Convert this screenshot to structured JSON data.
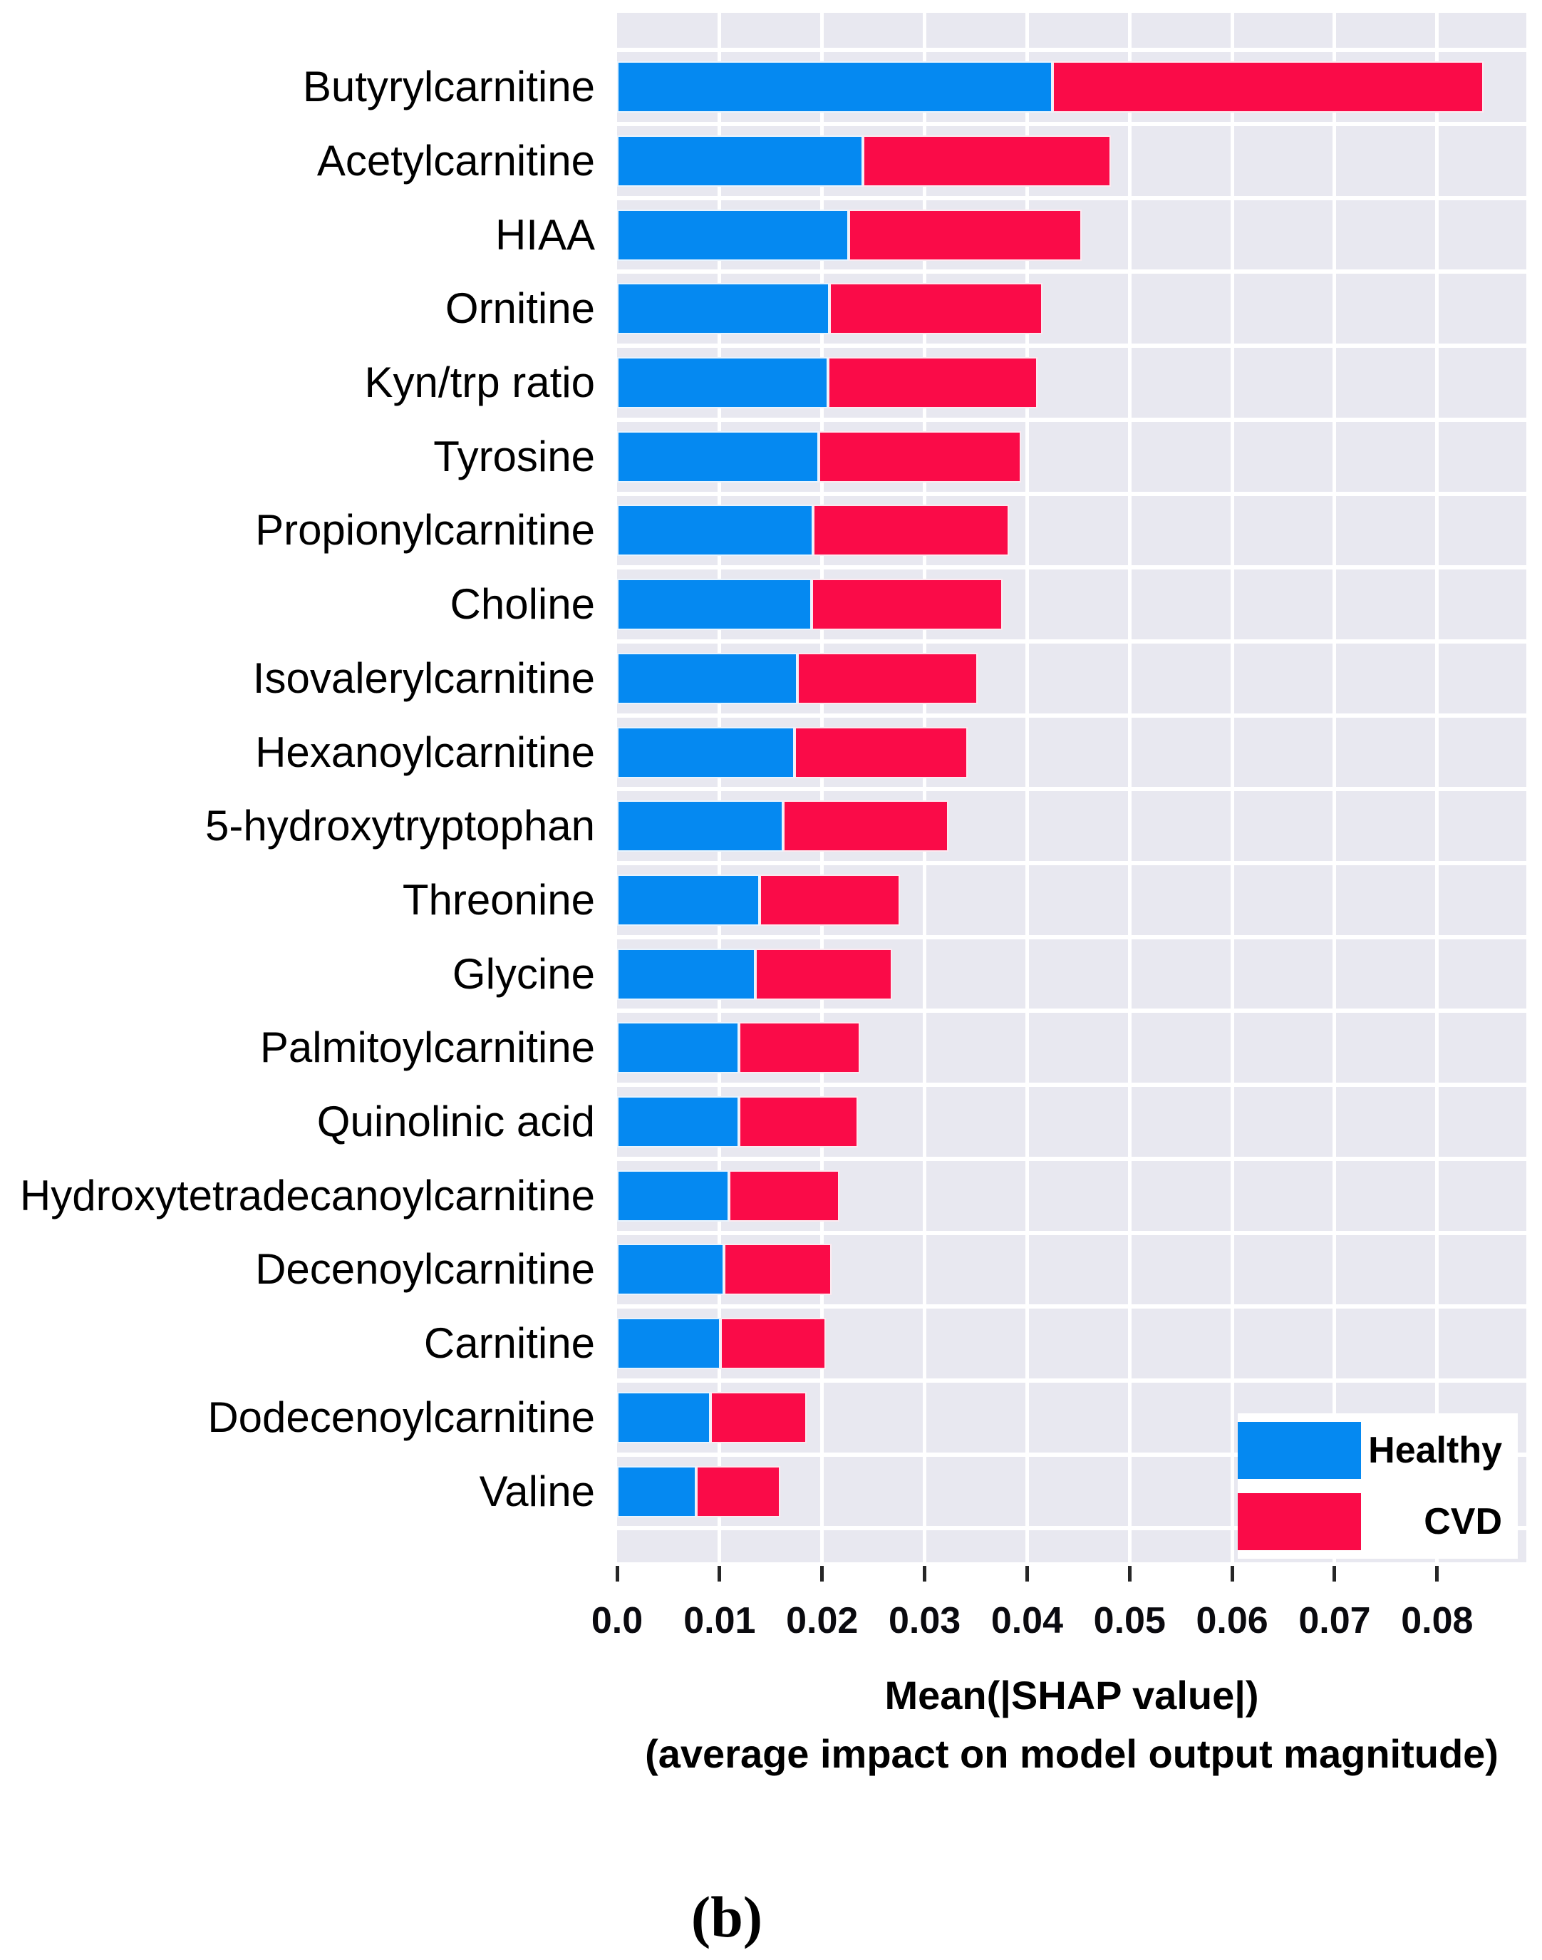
{
  "figure": {
    "caption": "(b)"
  },
  "chart_data": {
    "type": "bar",
    "orientation": "horizontal",
    "stacked": true,
    "grid": true,
    "plot_background": "#E8E8F0",
    "grid_color": "#FFFFFF",
    "tick_mark_color": "#262626",
    "xlabel_line1": "Mean(|SHAP value|)",
    "xlabel_line2": "(average impact on model output magnitude)",
    "xlim": [
      0,
      0.0887
    ],
    "x_ticks": [
      0,
      0.01,
      0.02,
      0.03,
      0.04,
      0.05,
      0.06,
      0.07,
      0.08
    ],
    "x_tick_labels": [
      "0.0",
      "0.01",
      "0.02",
      "0.03",
      "0.04",
      "0.05",
      "0.06",
      "0.07",
      "0.08"
    ],
    "categories": [
      "Butyrylcarnitine",
      "Acetylcarnitine",
      "HIAA",
      "Ornitine",
      "Kyn/trp ratio",
      "Tyrosine",
      "Propionylcarnitine",
      "Choline",
      "Isovalerylcarnitine",
      "Hexanoylcarnitine",
      "5-hydroxytryptophan",
      "Threonine",
      "Glycine",
      "Palmitoylcarnitine",
      "Quinolinic acid",
      "Hydroxytetradecanoylcarnitine",
      "Decenoylcarnitine",
      "Carnitine",
      "Dodecenoylcarnitine",
      "Valine"
    ],
    "series": [
      {
        "name": "Healthy",
        "color": "#0589F1",
        "values": [
          0.0425,
          0.024,
          0.0226,
          0.0207,
          0.0206,
          0.0197,
          0.0191,
          0.019,
          0.0176,
          0.0173,
          0.0162,
          0.0139,
          0.0135,
          0.0119,
          0.0119,
          0.0109,
          0.0104,
          0.0101,
          0.0091,
          0.0077
        ]
      },
      {
        "name": "CVD",
        "color": "#FA0B48",
        "values": [
          0.042,
          0.0242,
          0.0227,
          0.0208,
          0.0204,
          0.0197,
          0.0191,
          0.0186,
          0.0176,
          0.0169,
          0.0161,
          0.0137,
          0.0133,
          0.0118,
          0.0116,
          0.0108,
          0.0105,
          0.0103,
          0.0094,
          0.0082
        ]
      }
    ],
    "legend": {
      "position": "lower right",
      "background": "#FFFFFF"
    }
  }
}
